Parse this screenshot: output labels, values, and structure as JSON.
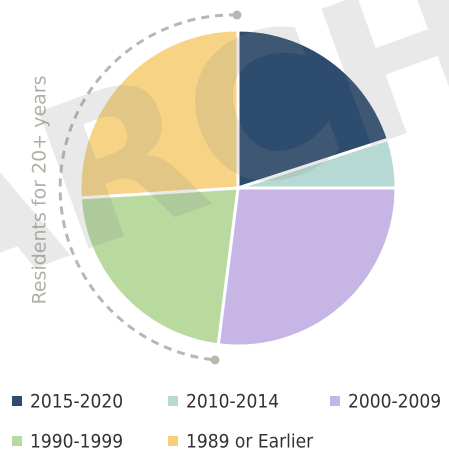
{
  "chart_data": {
    "type": "pie",
    "categories": [
      "2015-2020",
      "2010-2014",
      "2000-2009",
      "1990-1999",
      "1989 or Earlier"
    ],
    "values": [
      20,
      5,
      27,
      22,
      26
    ],
    "colors": [
      "#2e4d6e",
      "#b6d9d3",
      "#c7b5e6",
      "#b8da9f",
      "#f6cf78"
    ],
    "annotation": "Residents for 20+ years",
    "watermark": "ARCH"
  }
}
